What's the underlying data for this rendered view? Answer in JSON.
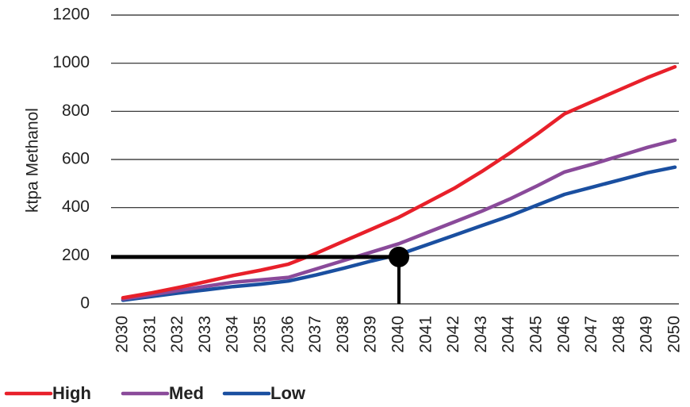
{
  "chart_data": {
    "type": "line",
    "ylabel": "ktpa Methanol",
    "xlabel": "",
    "title": "",
    "ylim": [
      0,
      1200
    ],
    "yticks": [
      0,
      200,
      400,
      600,
      800,
      1000,
      1200
    ],
    "grid": true,
    "legend_position": "bottom-left",
    "x": [
      "2030",
      "2031",
      "2032",
      "2033",
      "2034",
      "2035",
      "2036",
      "2037",
      "2038",
      "2039",
      "2040",
      "2041",
      "2042",
      "2043",
      "2044",
      "2045",
      "2046",
      "2047",
      "2048",
      "2049",
      "2050"
    ],
    "series": [
      {
        "name": "High",
        "color": "#e8202a",
        "values": [
          25,
          45,
          68,
          92,
          118,
          140,
          165,
          210,
          260,
          310,
          360,
          420,
          480,
          550,
          625,
          705,
          790,
          840,
          890,
          940,
          985
        ]
      },
      {
        "name": "Med",
        "color": "#8a4a9a",
        "values": [
          20,
          37,
          55,
          73,
          90,
          100,
          110,
          145,
          180,
          215,
          250,
          295,
          340,
          385,
          435,
          490,
          548,
          580,
          615,
          650,
          680
        ]
      },
      {
        "name": "Low",
        "color": "#1a4fa0",
        "values": [
          15,
          30,
          45,
          58,
          72,
          82,
          95,
          120,
          148,
          178,
          205,
          245,
          285,
          325,
          365,
          410,
          455,
          485,
          515,
          545,
          568
        ]
      }
    ],
    "annotation": {
      "x": "2040",
      "y": 195,
      "color": "#000000"
    }
  }
}
